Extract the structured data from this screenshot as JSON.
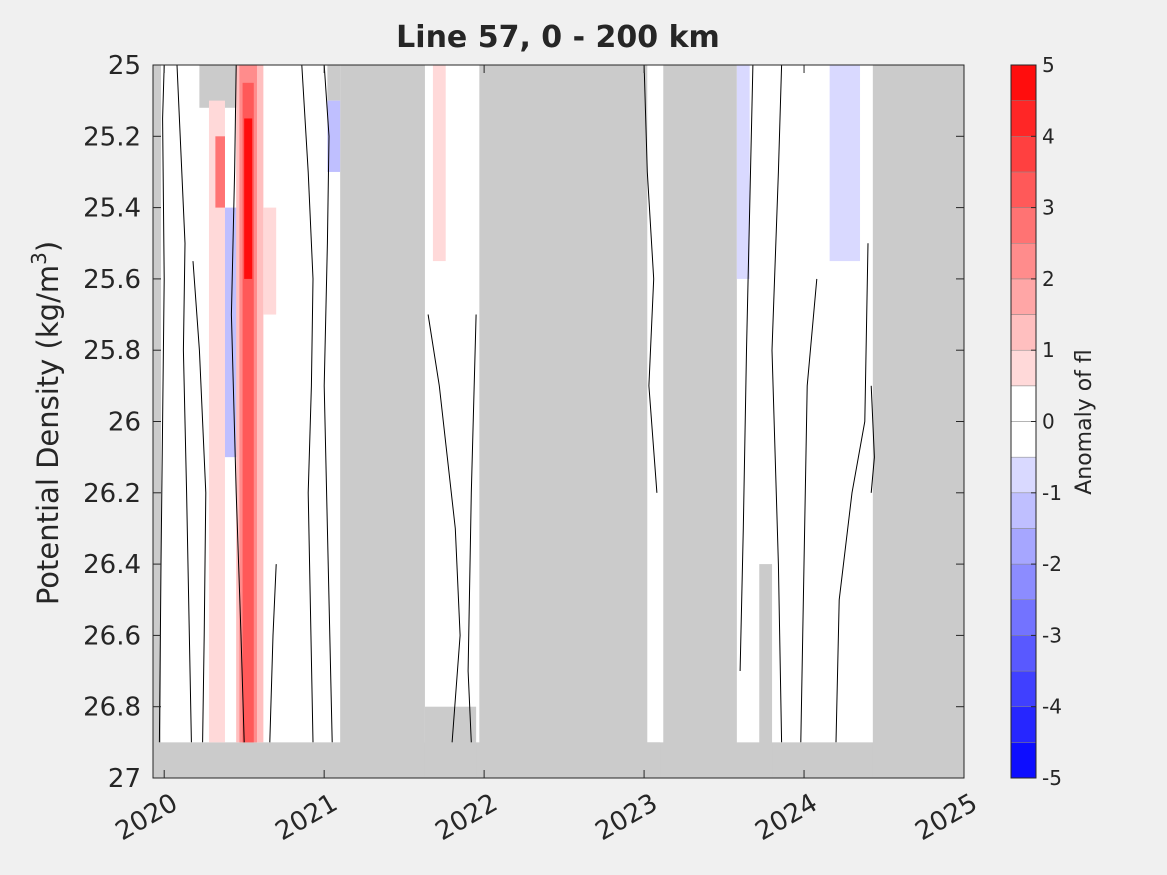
{
  "chart_data": {
    "type": "heatmap",
    "title": "Line 57, 0 - 200 km",
    "ylabel_main": "Potential Density (kg/m",
    "ylabel_sup": "3",
    "ylabel_close": ")",
    "colorbar_label": "Anomaly of fl",
    "x_ticks": [
      "2020",
      "2021",
      "2022",
      "2023",
      "2024",
      "2025"
    ],
    "x_tick_values": [
      2020,
      2021,
      2022,
      2023,
      2024,
      2025
    ],
    "xlim": [
      2019.93,
      2025
    ],
    "y_ticks": [
      "25",
      "25.2",
      "25.4",
      "25.6",
      "25.8",
      "26",
      "26.2",
      "26.4",
      "26.6",
      "26.8",
      "27"
    ],
    "y_tick_values": [
      25,
      25.2,
      25.4,
      25.6,
      25.8,
      26,
      26.2,
      26.4,
      26.6,
      26.8,
      27
    ],
    "ylim": [
      25,
      27
    ],
    "y_reversed": true,
    "colorbar_ticks": [
      "5",
      "4",
      "3",
      "2",
      "1",
      "0",
      "-1",
      "-2",
      "-3",
      "-4",
      "-5"
    ],
    "colorbar_tick_values": [
      5,
      4,
      3,
      2,
      1,
      0,
      -1,
      -2,
      -3,
      -4,
      -5
    ],
    "colorbar_range": [
      -5,
      5
    ],
    "colorbar_step": 0.5,
    "colors": {
      "no_data": "#cbcbcb",
      "background": "#f0f0f0",
      "axes": "#262626",
      "max": "#ff0000",
      "zero": "#ffffff",
      "min": "#0000ff"
    },
    "no_data_regions": [
      {
        "x0": 2019.93,
        "x1": 2025.0,
        "y0": 26.9,
        "y1": 27.0
      },
      {
        "x0": 2019.93,
        "x1": 2019.98,
        "y0": 25.0,
        "y1": 27.0
      },
      {
        "x0": 2020.22,
        "x1": 2020.47,
        "y0": 25.0,
        "y1": 25.12
      },
      {
        "x0": 2021.02,
        "x1": 2021.1,
        "y0": 25.0,
        "y1": 25.1
      },
      {
        "x0": 2021.1,
        "x1": 2021.63,
        "y0": 25.0,
        "y1": 27.0
      },
      {
        "x0": 2021.63,
        "x1": 2021.95,
        "y0": 26.8,
        "y1": 27.0
      },
      {
        "x0": 2021.97,
        "x1": 2023.02,
        "y0": 25.0,
        "y1": 27.0
      },
      {
        "x0": 2023.02,
        "x1": 2023.1,
        "y0": 26.9,
        "y1": 27.0
      },
      {
        "x0": 2023.12,
        "x1": 2023.58,
        "y0": 25.0,
        "y1": 27.0
      },
      {
        "x0": 2023.72,
        "x1": 2023.8,
        "y0": 26.4,
        "y1": 27.0
      },
      {
        "x0": 2024.2,
        "x1": 2024.32,
        "y0": 25.0,
        "y1": 25.1
      },
      {
        "x0": 2024.43,
        "x1": 2025.0,
        "y0": 25.0,
        "y1": 27.0
      }
    ],
    "anomaly_patches": [
      {
        "x0": 2020.28,
        "x1": 2020.38,
        "y0": 25.1,
        "y1": 26.9,
        "value": 0.8
      },
      {
        "x0": 2020.32,
        "x1": 2020.38,
        "y0": 25.2,
        "y1": 25.4,
        "value": 2.5
      },
      {
        "x0": 2020.38,
        "x1": 2020.46,
        "y0": 25.4,
        "y1": 26.1,
        "value": -1.2
      },
      {
        "x0": 2020.45,
        "x1": 2020.62,
        "y0": 25.0,
        "y1": 26.9,
        "value": 1.2
      },
      {
        "x0": 2020.47,
        "x1": 2020.58,
        "y0": 25.0,
        "y1": 26.9,
        "value": 2.2
      },
      {
        "x0": 2020.49,
        "x1": 2020.56,
        "y0": 25.05,
        "y1": 26.9,
        "value": 3.2
      },
      {
        "x0": 2020.5,
        "x1": 2020.55,
        "y0": 25.15,
        "y1": 25.6,
        "value": 4.5
      },
      {
        "x0": 2020.62,
        "x1": 2020.7,
        "y0": 25.4,
        "y1": 25.7,
        "value": 0.8
      },
      {
        "x0": 2021.02,
        "x1": 2021.1,
        "y0": 25.1,
        "y1": 25.3,
        "value": -1.2
      },
      {
        "x0": 2021.68,
        "x1": 2021.76,
        "y0": 25.0,
        "y1": 25.55,
        "value": 0.7
      },
      {
        "x0": 2023.58,
        "x1": 2023.66,
        "y0": 25.0,
        "y1": 25.6,
        "value": -0.7
      },
      {
        "x0": 2024.16,
        "x1": 2024.35,
        "y0": 25.0,
        "y1": 25.55,
        "value": -0.7
      }
    ],
    "contours": [
      [
        [
          2020.0,
          25.0
        ],
        [
          2019.99,
          25.15
        ],
        [
          2020.0,
          25.6
        ],
        [
          2019.99,
          26.0
        ],
        [
          2019.98,
          26.4
        ],
        [
          2019.97,
          26.9
        ]
      ],
      [
        [
          2020.08,
          25.0
        ],
        [
          2020.1,
          25.2
        ],
        [
          2020.13,
          25.5
        ],
        [
          2020.12,
          25.8
        ],
        [
          2020.14,
          26.2
        ],
        [
          2020.17,
          26.9
        ]
      ],
      [
        [
          2020.18,
          25.55
        ],
        [
          2020.22,
          25.8
        ],
        [
          2020.26,
          26.2
        ],
        [
          2020.25,
          26.6
        ],
        [
          2020.24,
          26.9
        ]
      ],
      [
        [
          2020.45,
          25.0
        ],
        [
          2020.44,
          25.3
        ],
        [
          2020.42,
          25.7
        ],
        [
          2020.45,
          26.2
        ],
        [
          2020.48,
          26.6
        ],
        [
          2020.5,
          26.9
        ]
      ],
      [
        [
          2020.7,
          26.4
        ],
        [
          2020.68,
          26.6
        ],
        [
          2020.66,
          26.9
        ]
      ],
      [
        [
          2020.86,
          25.0
        ],
        [
          2020.9,
          25.3
        ],
        [
          2020.93,
          25.6
        ],
        [
          2020.92,
          25.9
        ],
        [
          2020.9,
          26.2
        ],
        [
          2020.93,
          26.9
        ]
      ],
      [
        [
          2021.0,
          25.0
        ],
        [
          2021.03,
          25.2
        ],
        [
          2021.02,
          25.5
        ],
        [
          2021.0,
          25.9
        ],
        [
          2021.02,
          26.3
        ],
        [
          2021.05,
          26.9
        ]
      ],
      [
        [
          2021.65,
          25.7
        ],
        [
          2021.72,
          25.9
        ],
        [
          2021.82,
          26.3
        ],
        [
          2021.85,
          26.6
        ],
        [
          2021.8,
          26.9
        ]
      ],
      [
        [
          2021.95,
          25.7
        ],
        [
          2021.92,
          26.2
        ],
        [
          2021.9,
          26.7
        ],
        [
          2021.92,
          26.9
        ]
      ],
      [
        [
          2023.0,
          25.0
        ],
        [
          2023.02,
          25.3
        ],
        [
          2023.06,
          25.6
        ],
        [
          2023.03,
          25.9
        ],
        [
          2023.08,
          26.2
        ]
      ],
      [
        [
          2023.6,
          26.7
        ],
        [
          2023.62,
          26.3
        ],
        [
          2023.64,
          25.8
        ],
        [
          2023.66,
          25.4
        ],
        [
          2023.68,
          25.0
        ]
      ],
      [
        [
          2023.86,
          26.9
        ],
        [
          2023.84,
          26.4
        ],
        [
          2023.8,
          25.8
        ],
        [
          2023.84,
          25.3
        ],
        [
          2023.86,
          25.0
        ]
      ],
      [
        [
          2023.98,
          26.9
        ],
        [
          2024.0,
          26.4
        ],
        [
          2024.02,
          25.9
        ],
        [
          2024.08,
          25.6
        ]
      ],
      [
        [
          2024.2,
          26.9
        ],
        [
          2024.22,
          26.5
        ],
        [
          2024.3,
          26.2
        ],
        [
          2024.38,
          26.0
        ],
        [
          2024.4,
          25.5
        ]
      ],
      [
        [
          2024.42,
          25.9
        ],
        [
          2024.44,
          26.1
        ],
        [
          2024.42,
          26.2
        ]
      ]
    ]
  }
}
